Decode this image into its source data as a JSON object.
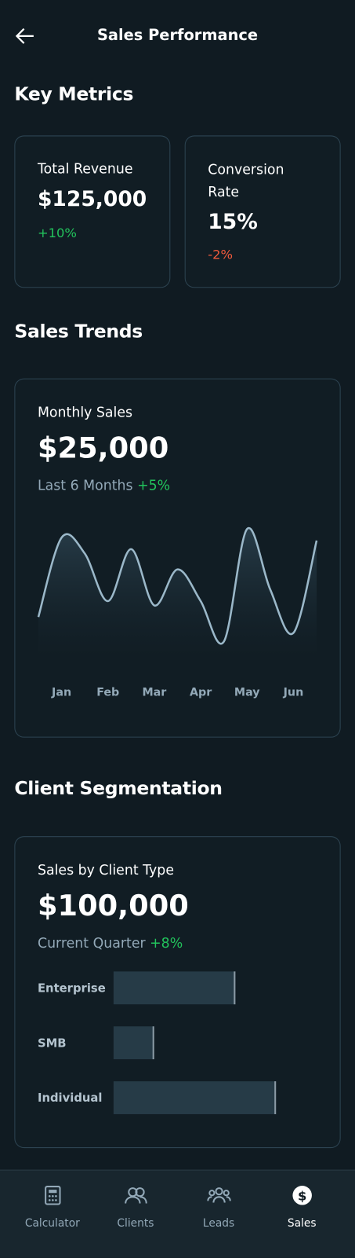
{
  "header": {
    "title": "Sales Performance"
  },
  "key_metrics": {
    "heading": "Key Metrics",
    "cards": [
      {
        "label": "Total Revenue",
        "value": "$125,000",
        "change": "+10%"
      },
      {
        "label": "Conversion Rate",
        "value": "15%",
        "change": "-2%"
      }
    ]
  },
  "sales_trends": {
    "heading": "Sales Trends",
    "card": {
      "label": "Monthly Sales",
      "value": "$25,000",
      "period": "Last 6 Months",
      "change": "+5%"
    },
    "chart_data": {
      "type": "line",
      "x": [
        0,
        1,
        2,
        3,
        4,
        5,
        6,
        7,
        8,
        9,
        10,
        11,
        12
      ],
      "values": [
        28,
        83,
        72,
        39,
        75,
        36,
        61,
        39,
        11,
        89,
        47,
        17,
        81
      ],
      "xlim": [
        0,
        12
      ],
      "xticks": [
        {
          "value": 1,
          "label": "Jan"
        },
        {
          "value": 3,
          "label": "Feb"
        },
        {
          "value": 5,
          "label": "Mar"
        },
        {
          "value": 7,
          "label": "Apr"
        },
        {
          "value": 9,
          "label": "May"
        },
        {
          "value": 11,
          "label": "Jun"
        }
      ],
      "ylim": [
        0,
        100
      ],
      "color": "#9bb8c9"
    }
  },
  "client_segmentation": {
    "heading": "Client Segmentation",
    "card": {
      "label": "Sales by Client Type",
      "value": "$100,000",
      "period": "Current Quarter",
      "change": "+8%"
    },
    "chart_data": {
      "type": "bar",
      "orientation": "horizontal",
      "categories": [
        "Enterprise",
        "SMB",
        "Individual"
      ],
      "values": [
        60,
        20,
        80
      ],
      "xlim": [
        0,
        100
      ],
      "color": "#263b47"
    }
  },
  "nav": {
    "items": [
      "Calculator",
      "Clients",
      "Leads",
      "Sales"
    ],
    "active": 3
  }
}
